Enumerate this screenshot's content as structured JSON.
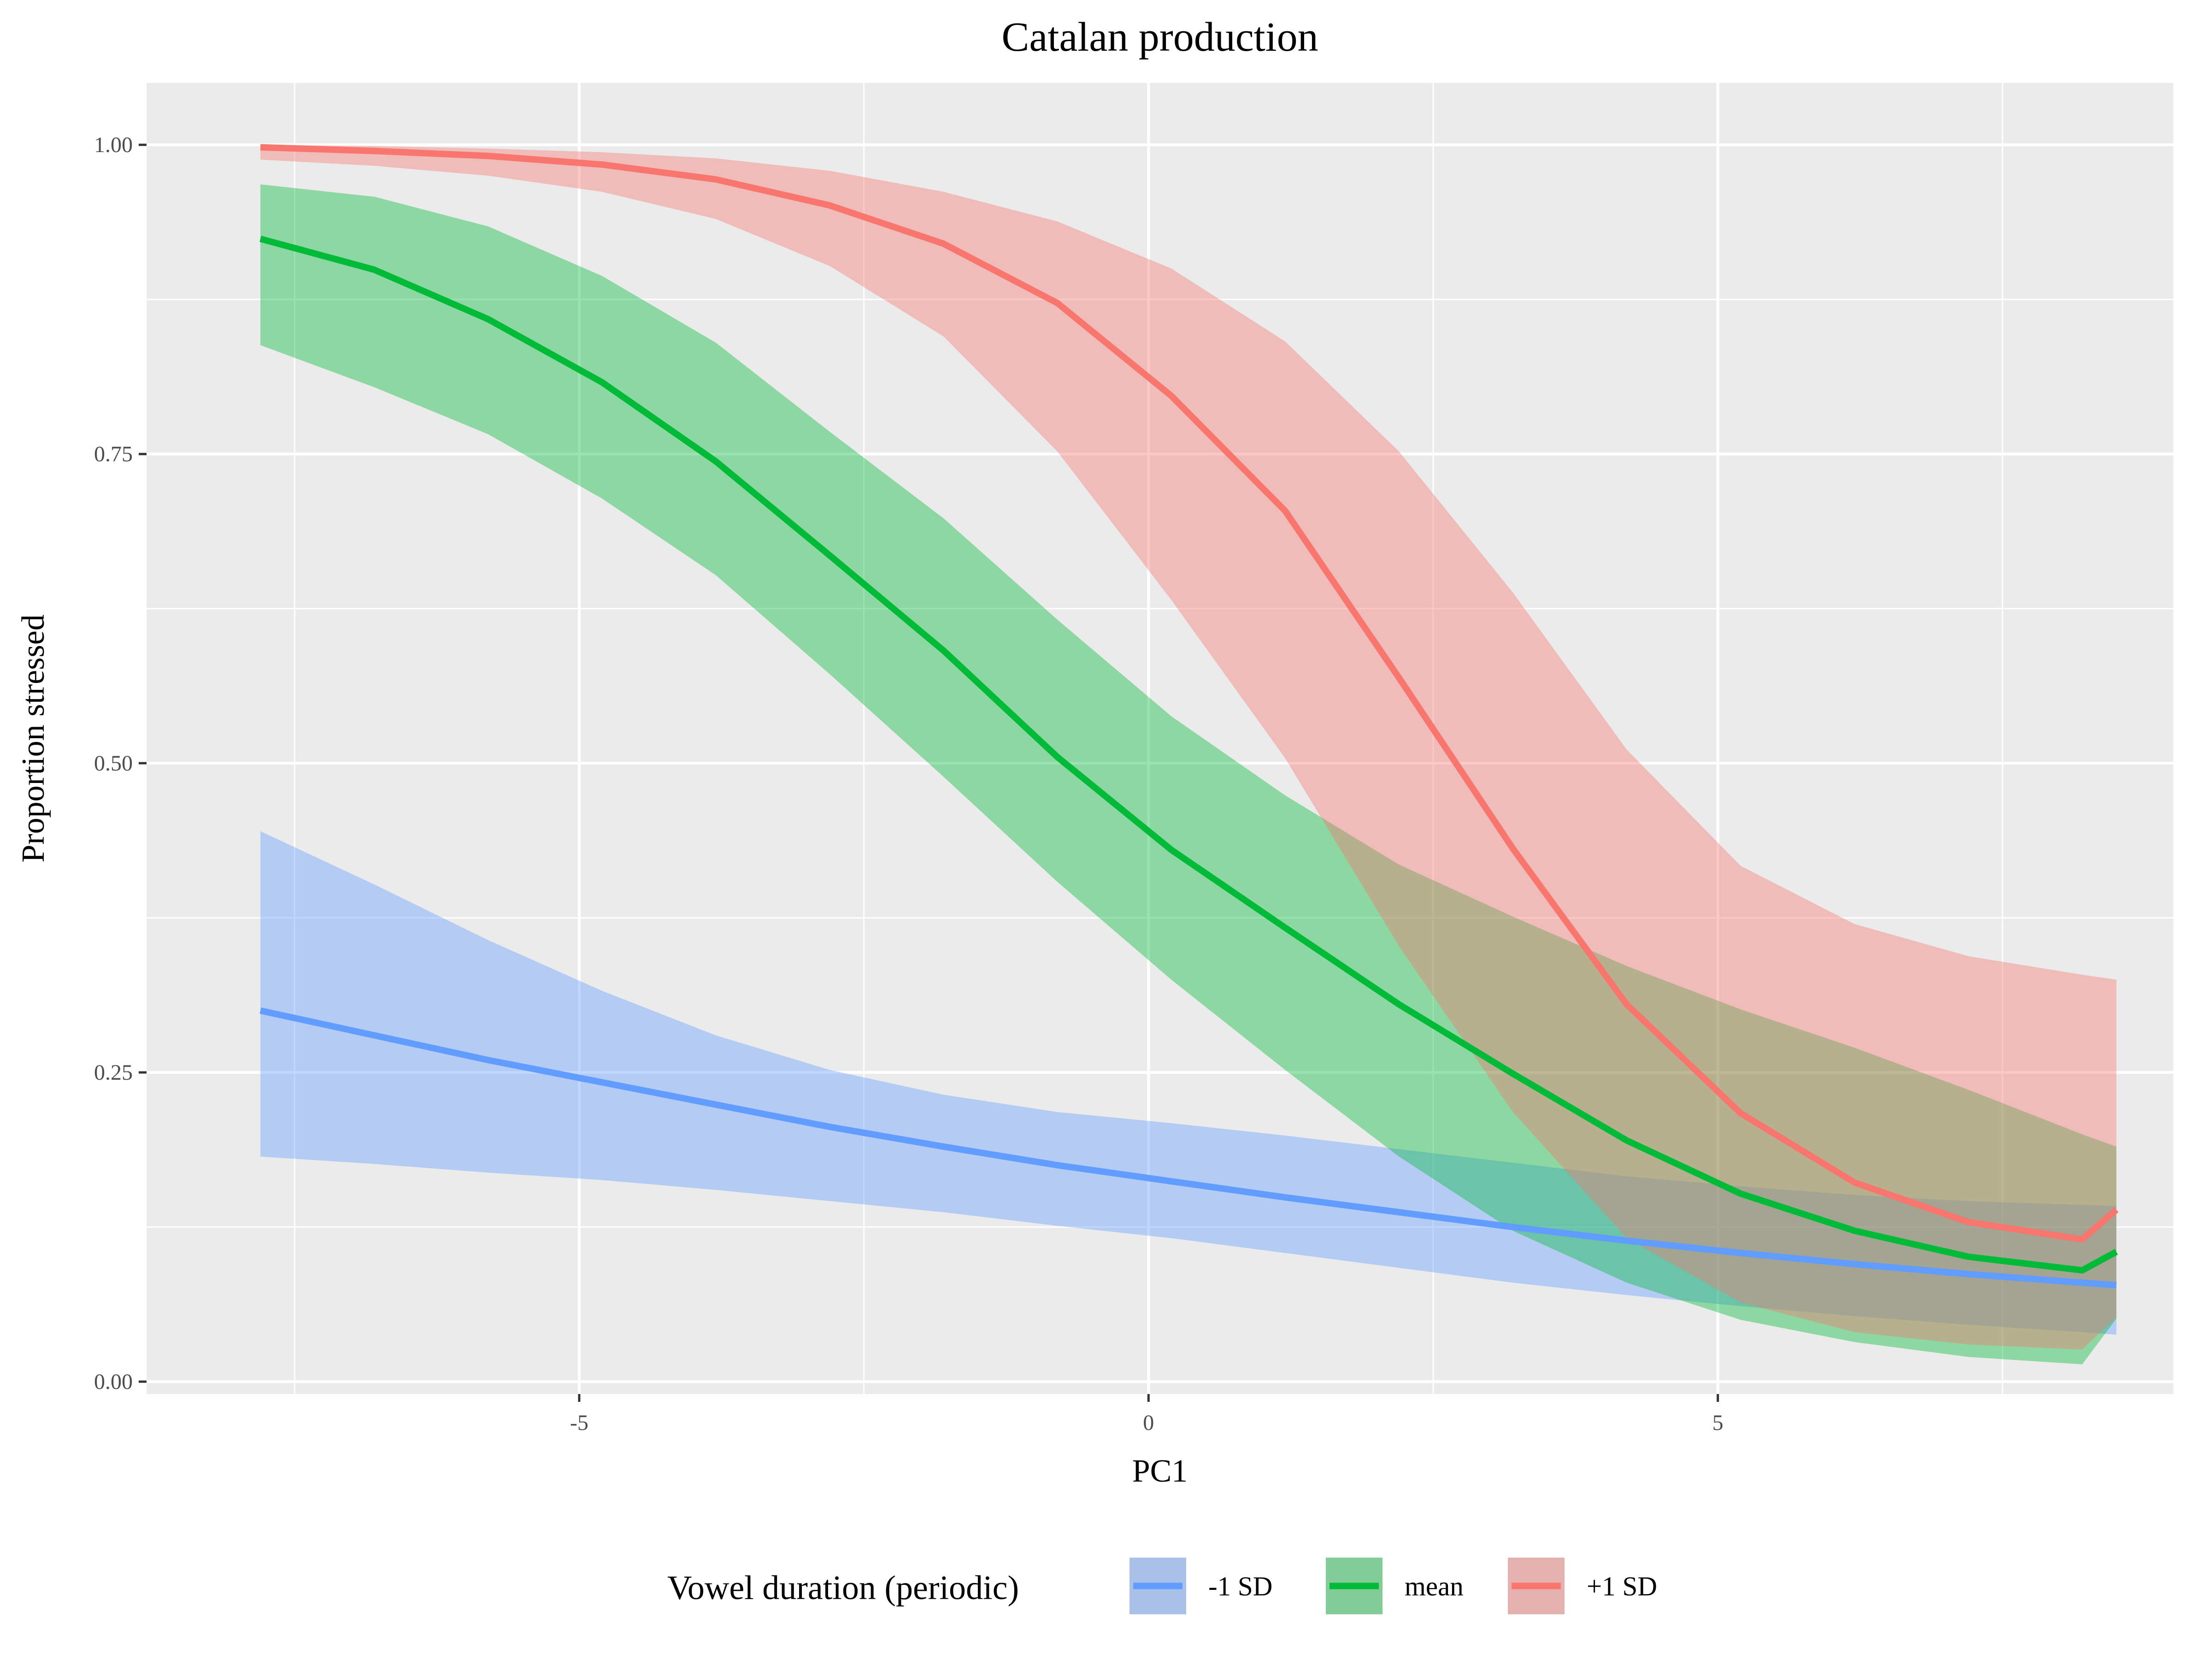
{
  "chart_data": {
    "type": "line",
    "title": "Catalan production",
    "xlabel": "PC1",
    "ylabel": "Proportion stressed",
    "xlim": [
      -8.8,
      9.0
    ],
    "ylim": [
      -0.01,
      1.05
    ],
    "x_ticks": [
      -5,
      0,
      5
    ],
    "x_tick_labels": [
      "-5",
      "0",
      "5"
    ],
    "x_minor_ticks": [
      -7.5,
      -2.5,
      2.5,
      7.5
    ],
    "y_ticks": [
      0,
      0.25,
      0.5,
      0.75,
      1
    ],
    "y_tick_labels": [
      "0.00",
      "0.25",
      "0.50",
      "0.75",
      "1.00"
    ],
    "y_minor_ticks": [
      0.125,
      0.375,
      0.625,
      0.875
    ],
    "grid": true,
    "legend": {
      "position": "bottom",
      "title": "Vowel duration (periodic)"
    },
    "x": [
      -7.8,
      -6.8,
      -5.8,
      -4.8,
      -3.8,
      -2.8,
      -1.8,
      -0.8,
      0.2,
      1.2,
      2.2,
      3.2,
      4.2,
      5.2,
      6.2,
      7.2,
      8.2,
      8.5
    ],
    "series": [
      {
        "name": "-1 SD",
        "color": "#619CFF",
        "fill": "#619CFF",
        "values": [
          0.3,
          0.28,
          0.26,
          0.242,
          0.224,
          0.206,
          0.19,
          0.175,
          0.162,
          0.149,
          0.137,
          0.125,
          0.114,
          0.104,
          0.095,
          0.087,
          0.08,
          0.078
        ],
        "lower": [
          0.182,
          0.176,
          0.169,
          0.163,
          0.155,
          0.146,
          0.137,
          0.126,
          0.116,
          0.104,
          0.092,
          0.08,
          0.07,
          0.061,
          0.053,
          0.046,
          0.04,
          0.038
        ],
        "upper": [
          0.445,
          0.402,
          0.357,
          0.316,
          0.28,
          0.252,
          0.232,
          0.218,
          0.209,
          0.199,
          0.188,
          0.177,
          0.166,
          0.158,
          0.151,
          0.146,
          0.143,
          0.142
        ]
      },
      {
        "name": "mean",
        "color": "#00BA38",
        "fill": "#00BA38",
        "values": [
          0.924,
          0.899,
          0.859,
          0.808,
          0.744,
          0.668,
          0.591,
          0.505,
          0.43,
          0.367,
          0.305,
          0.249,
          0.195,
          0.152,
          0.122,
          0.101,
          0.09,
          0.105
        ],
        "lower": [
          0.838,
          0.804,
          0.766,
          0.714,
          0.652,
          0.572,
          0.489,
          0.404,
          0.325,
          0.252,
          0.182,
          0.122,
          0.08,
          0.05,
          0.032,
          0.02,
          0.014,
          0.051
        ],
        "upper": [
          0.968,
          0.958,
          0.934,
          0.894,
          0.84,
          0.768,
          0.698,
          0.616,
          0.538,
          0.474,
          0.418,
          0.376,
          0.336,
          0.301,
          0.27,
          0.236,
          0.2,
          0.19
        ]
      },
      {
        "name": "+1 SD",
        "color": "#F8766D",
        "fill": "#F8766D",
        "values": [
          0.998,
          0.995,
          0.991,
          0.984,
          0.972,
          0.951,
          0.92,
          0.872,
          0.797,
          0.704,
          0.569,
          0.431,
          0.305,
          0.217,
          0.161,
          0.129,
          0.115,
          0.139
        ],
        "lower": [
          0.988,
          0.983,
          0.975,
          0.962,
          0.94,
          0.902,
          0.845,
          0.752,
          0.632,
          0.504,
          0.352,
          0.218,
          0.116,
          0.064,
          0.04,
          0.03,
          0.026,
          0.052
        ],
        "upper": [
          1.0,
          0.999,
          0.997,
          0.994,
          0.989,
          0.979,
          0.962,
          0.938,
          0.9,
          0.841,
          0.752,
          0.638,
          0.511,
          0.417,
          0.37,
          0.344,
          0.329,
          0.325
        ]
      }
    ]
  }
}
